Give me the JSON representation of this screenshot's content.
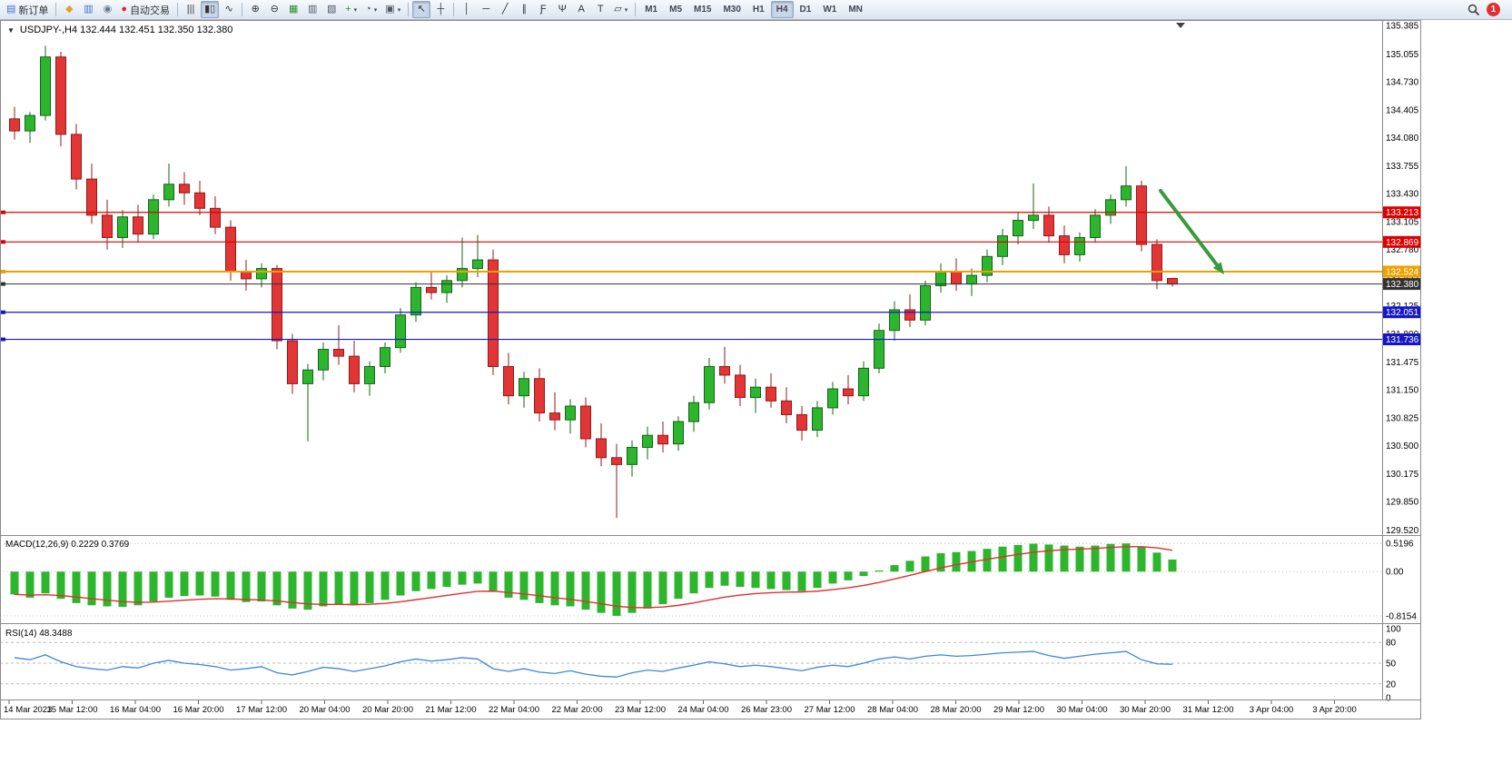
{
  "toolbar": {
    "items": [
      {
        "type": "button",
        "name": "new-order-button",
        "icon": "order-ticket-icon",
        "glyph": "▤",
        "glyph_color": "#3f6fd0",
        "label": "新订单"
      },
      {
        "type": "sep"
      },
      {
        "type": "button",
        "name": "metaeditor-button",
        "icon": "metaeditor-icon",
        "glyph": "◆",
        "glyph_color": "#e0a22e"
      },
      {
        "type": "button",
        "name": "market-watch-button",
        "icon": "market-watch-icon",
        "glyph": "▥",
        "glyph_color": "#3f6fd0"
      },
      {
        "type": "button",
        "name": "mql5-community-button",
        "icon": "mql5-icon",
        "glyph": "◉",
        "glyph_color": "#6a7a8a"
      },
      {
        "type": "button",
        "name": "auto-trading-button",
        "icon": "auto-trading-icon",
        "glyph": "●",
        "glyph_color": "#d92c2c",
        "label": "自动交易"
      },
      {
        "type": "sep"
      },
      {
        "type": "button",
        "name": "bar-chart-button",
        "icon": "bar-chart-icon",
        "glyph": "|||"
      },
      {
        "type": "button",
        "name": "candlestick-chart-button",
        "icon": "candlestick-icon",
        "glyph": "▮▯",
        "active": true
      },
      {
        "type": "button",
        "name": "line-chart-button",
        "icon": "line-chart-icon",
        "glyph": "∿"
      },
      {
        "type": "sep"
      },
      {
        "type": "button",
        "name": "zoom-in-button",
        "icon": "zoom-in-icon",
        "glyph": "⊕"
      },
      {
        "type": "button",
        "name": "zoom-out-button",
        "icon": "zoom-out-icon",
        "glyph": "⊖"
      },
      {
        "type": "button",
        "name": "grid-button",
        "icon": "grid-icon",
        "glyph": "▦",
        "glyph_color": "#2e8b2e"
      },
      {
        "type": "button",
        "name": "tile-windows-button",
        "icon": "tile-windows-icon",
        "glyph": "▥",
        "glyph_color": "#556"
      },
      {
        "type": "button",
        "name": "cascade-windows-button",
        "icon": "cascade-windows-icon",
        "glyph": "▧",
        "glyph_color": "#556"
      },
      {
        "type": "button",
        "name": "indicators-button",
        "icon": "add-indicator-icon",
        "glyph": "+",
        "glyph_color": "#1f9e1f",
        "arrow": true
      },
      {
        "type": "button",
        "name": "periods-button",
        "icon": "clock-icon",
        "glyph": "◔",
        "glyph_color": "#556",
        "arrow": true
      },
      {
        "type": "button",
        "name": "templates-button",
        "icon": "template-icon",
        "glyph": "▣",
        "glyph_color": "#556",
        "arrow": true
      },
      {
        "type": "sep"
      },
      {
        "type": "button",
        "name": "cursor-button",
        "icon": "cursor-icon",
        "glyph": "↖",
        "active": true
      },
      {
        "type": "button",
        "name": "crosshair-button",
        "icon": "crosshair-icon",
        "glyph": "┼"
      },
      {
        "type": "sep"
      },
      {
        "type": "button",
        "name": "vertical-line-button",
        "icon": "vertical-line-icon",
        "glyph": "│"
      },
      {
        "type": "button",
        "name": "horizontal-line-button",
        "icon": "horizontal-line-icon",
        "glyph": "─"
      },
      {
        "type": "button",
        "name": "trendline-button",
        "icon": "trendline-icon",
        "glyph": "╱"
      },
      {
        "type": "button",
        "name": "channel-button",
        "icon": "channel-icon",
        "glyph": "∥"
      },
      {
        "type": "button",
        "name": "fibonacci-button",
        "icon": "fibonacci-icon",
        "glyph": "Ƒ"
      },
      {
        "type": "button",
        "name": "andrews-pitchfork-button",
        "icon": "pitchfork-icon",
        "glyph": "Ψ"
      },
      {
        "type": "button",
        "name": "text-button",
        "icon": "text-icon",
        "glyph": "A"
      },
      {
        "type": "button",
        "name": "label-button",
        "icon": "label-icon",
        "glyph": "T"
      },
      {
        "type": "button",
        "name": "shapes-button",
        "icon": "shapes-icon",
        "glyph": "▱",
        "arrow": true
      },
      {
        "type": "sep"
      },
      {
        "type": "timeframes"
      },
      {
        "type": "spacer"
      },
      {
        "type": "button",
        "name": "search-button",
        "icon": "magnifier-icon",
        "glyph": "magnifier"
      },
      {
        "type": "badge",
        "name": "notification-badge",
        "label": "1"
      }
    ],
    "timeframes": [
      "M1",
      "M5",
      "M15",
      "M30",
      "H1",
      "H4",
      "D1",
      "W1",
      "MN"
    ],
    "active_timeframe": "H4",
    "notification_count": "1"
  },
  "header": {
    "one_click_toggle": "▼",
    "title": "USDJPY-,H4 132.444 132.451 132.350 132.380"
  },
  "colors": {
    "bull": "#2db52d",
    "bull_edge": "#15631a",
    "bear": "#e23535",
    "bear_edge": "#8f1b1b",
    "macd_bar": "#2db52d",
    "macd_signal": "#e03030",
    "rsi_line": "#3f87d9",
    "hline_red": "#dd0000",
    "hline_orange": "#efa000",
    "hline_blue": "#1616c8",
    "bid_line": "#333333",
    "arrow_green": "#379a3c"
  },
  "chart_data": {
    "type": "candlestick",
    "symbol": "USDJPY-",
    "timeframe": "H4",
    "current_ohlc": {
      "open": "132.444",
      "high": "132.451",
      "low": "132.350",
      "close": "132.380"
    },
    "y_axis_labels": [
      "135.385",
      "135.055",
      "134.730",
      "134.405",
      "134.080",
      "133.755",
      "133.430",
      "133.105",
      "132.780",
      "132.455",
      "132.125",
      "131.800",
      "131.475",
      "131.150",
      "130.825",
      "130.500",
      "130.175",
      "129.850",
      "129.520"
    ],
    "y_range": [
      129.46,
      135.45
    ],
    "x_labels": [
      "14 Mar 2023",
      "15 Mar 12:00",
      "16 Mar 04:00",
      "16 Mar 20:00",
      "17 Mar 12:00",
      "20 Mar 04:00",
      "20 Mar 20:00",
      "21 Mar 12:00",
      "22 Mar 04:00",
      "22 Mar 20:00",
      "23 Mar 12:00",
      "24 Mar 04:00",
      "26 Mar 23:00",
      "27 Mar 12:00",
      "28 Mar 04:00",
      "28 Mar 20:00",
      "29 Mar 12:00",
      "30 Mar 04:00",
      "30 Mar 20:00",
      "31 Mar 12:00",
      "3 Apr 04:00",
      "3 Apr 20:00"
    ],
    "candles_ohlc": [
      [
        134.3,
        134.44,
        134.06,
        134.16
      ],
      [
        134.16,
        134.38,
        134.02,
        134.34
      ],
      [
        134.34,
        135.15,
        134.28,
        135.02
      ],
      [
        135.02,
        135.08,
        133.98,
        134.12
      ],
      [
        134.12,
        134.24,
        133.48,
        133.6
      ],
      [
        133.6,
        133.78,
        133.08,
        133.18
      ],
      [
        133.18,
        133.36,
        132.78,
        132.92
      ],
      [
        132.92,
        133.24,
        132.8,
        133.16
      ],
      [
        133.16,
        133.3,
        132.86,
        132.96
      ],
      [
        132.96,
        133.42,
        132.9,
        133.36
      ],
      [
        133.36,
        133.78,
        133.28,
        133.54
      ],
      [
        133.54,
        133.68,
        133.3,
        133.44
      ],
      [
        133.44,
        133.58,
        133.18,
        133.26
      ],
      [
        133.26,
        133.4,
        132.96,
        133.04
      ],
      [
        133.04,
        133.12,
        132.42,
        132.52
      ],
      [
        132.52,
        132.66,
        132.3,
        132.44
      ],
      [
        132.44,
        132.62,
        132.34,
        132.56
      ],
      [
        132.56,
        132.6,
        131.62,
        131.72
      ],
      [
        131.72,
        131.8,
        131.1,
        131.22
      ],
      [
        131.22,
        131.45,
        130.55,
        131.38
      ],
      [
        131.38,
        131.7,
        131.26,
        131.62
      ],
      [
        131.62,
        131.9,
        131.44,
        131.54
      ],
      [
        131.54,
        131.72,
        131.12,
        131.22
      ],
      [
        131.22,
        131.48,
        131.08,
        131.42
      ],
      [
        131.42,
        131.7,
        131.34,
        131.64
      ],
      [
        131.64,
        132.1,
        131.58,
        132.02
      ],
      [
        132.02,
        132.4,
        131.94,
        132.34
      ],
      [
        132.34,
        132.52,
        132.2,
        132.28
      ],
      [
        132.28,
        132.48,
        132.16,
        132.42
      ],
      [
        132.42,
        132.92,
        132.34,
        132.56
      ],
      [
        132.56,
        132.95,
        132.46,
        132.66
      ],
      [
        132.66,
        132.78,
        131.32,
        131.42
      ],
      [
        131.42,
        131.58,
        130.98,
        131.08
      ],
      [
        131.08,
        131.36,
        130.94,
        131.28
      ],
      [
        131.28,
        131.4,
        130.78,
        130.88
      ],
      [
        130.88,
        131.12,
        130.68,
        130.8
      ],
      [
        130.8,
        131.04,
        130.64,
        130.96
      ],
      [
        130.96,
        131.06,
        130.48,
        130.58
      ],
      [
        130.58,
        130.76,
        130.26,
        130.36
      ],
      [
        130.36,
        130.52,
        129.66,
        130.28
      ],
      [
        130.28,
        130.56,
        130.14,
        130.48
      ],
      [
        130.48,
        130.72,
        130.34,
        130.62
      ],
      [
        130.62,
        130.78,
        130.42,
        130.52
      ],
      [
        130.52,
        130.84,
        130.44,
        130.78
      ],
      [
        130.78,
        131.08,
        130.66,
        131.0
      ],
      [
        131.0,
        131.52,
        130.92,
        131.42
      ],
      [
        131.42,
        131.65,
        131.22,
        131.32
      ],
      [
        131.32,
        131.44,
        130.96,
        131.06
      ],
      [
        131.06,
        131.28,
        130.88,
        131.18
      ],
      [
        131.18,
        131.34,
        130.94,
        131.02
      ],
      [
        131.02,
        131.18,
        130.76,
        130.86
      ],
      [
        130.86,
        130.96,
        130.56,
        130.68
      ],
      [
        130.68,
        131.02,
        130.6,
        130.94
      ],
      [
        130.94,
        131.24,
        130.86,
        131.16
      ],
      [
        131.16,
        131.32,
        130.98,
        131.08
      ],
      [
        131.08,
        131.48,
        131.02,
        131.4
      ],
      [
        131.4,
        131.92,
        131.34,
        131.84
      ],
      [
        131.84,
        132.18,
        131.72,
        132.08
      ],
      [
        132.08,
        132.26,
        131.88,
        131.96
      ],
      [
        131.96,
        132.42,
        131.9,
        132.36
      ],
      [
        132.36,
        132.62,
        132.28,
        132.52
      ],
      [
        132.52,
        132.68,
        132.3,
        132.38
      ],
      [
        132.38,
        132.56,
        132.24,
        132.48
      ],
      [
        132.48,
        132.78,
        132.4,
        132.7
      ],
      [
        132.7,
        133.02,
        132.6,
        132.94
      ],
      [
        132.94,
        133.22,
        132.84,
        133.12
      ],
      [
        133.12,
        133.55,
        133.02,
        133.18
      ],
      [
        133.18,
        133.28,
        132.86,
        132.94
      ],
      [
        132.94,
        133.06,
        132.62,
        132.72
      ],
      [
        132.72,
        132.98,
        132.64,
        132.92
      ],
      [
        132.92,
        133.25,
        132.86,
        133.18
      ],
      [
        133.18,
        133.42,
        133.08,
        133.36
      ],
      [
        133.36,
        133.75,
        133.28,
        133.52
      ],
      [
        133.52,
        133.58,
        132.76,
        132.84
      ],
      [
        132.84,
        132.9,
        132.32,
        132.42
      ],
      [
        132.444,
        132.451,
        132.35,
        132.38
      ]
    ],
    "horizontal_lines": [
      {
        "label": "133.213",
        "price": 133.213,
        "color_key": "hline_red",
        "width": 1.2
      },
      {
        "label": "132.869",
        "price": 132.869,
        "color_key": "hline_red",
        "width": 1.2
      },
      {
        "label": "132.524",
        "price": 132.524,
        "color_key": "hline_orange",
        "width": 2
      },
      {
        "label": "132.380",
        "price": 132.38,
        "color_key": "bid_line",
        "width": 1
      },
      {
        "label": "132.051",
        "price": 132.051,
        "color_key": "hline_blue",
        "width": 1.2
      },
      {
        "label": "131.736",
        "price": 131.736,
        "color_key": "hline_blue",
        "width": 1.2
      }
    ],
    "indicators": {
      "macd": {
        "label": "MACD(12,26,9)",
        "current": "0.2229",
        "signal_current": "0.3769",
        "axis_labels": [
          "0.5196",
          "0.00",
          "-0.8154"
        ],
        "axis_values": [
          0.5196,
          0,
          -0.8154
        ],
        "range": [
          -0.95,
          0.64
        ],
        "values": [
          -0.42,
          -0.48,
          -0.4,
          -0.5,
          -0.58,
          -0.62,
          -0.64,
          -0.65,
          -0.62,
          -0.55,
          -0.48,
          -0.45,
          -0.44,
          -0.46,
          -0.52,
          -0.56,
          -0.55,
          -0.62,
          -0.68,
          -0.7,
          -0.64,
          -0.6,
          -0.62,
          -0.58,
          -0.52,
          -0.44,
          -0.36,
          -0.32,
          -0.28,
          -0.24,
          -0.22,
          -0.35,
          -0.48,
          -0.52,
          -0.58,
          -0.62,
          -0.64,
          -0.7,
          -0.76,
          -0.815,
          -0.76,
          -0.68,
          -0.6,
          -0.5,
          -0.4,
          -0.3,
          -0.26,
          -0.28,
          -0.3,
          -0.32,
          -0.34,
          -0.36,
          -0.3,
          -0.22,
          -0.16,
          -0.08,
          0.02,
          0.12,
          0.2,
          0.28,
          0.34,
          0.36,
          0.38,
          0.42,
          0.46,
          0.49,
          0.515,
          0.5,
          0.48,
          0.46,
          0.48,
          0.51,
          0.5196,
          0.46,
          0.35,
          0.2229
        ]
      },
      "rsi": {
        "label": "RSI(14)",
        "current": "48.3488",
        "axis_labels": [
          "100",
          "80",
          "50",
          "20",
          "0"
        ],
        "axis_values": [
          100,
          80,
          50,
          20,
          0
        ],
        "levels": [
          80,
          50,
          20
        ],
        "values": [
          58,
          55,
          62,
          52,
          45,
          42,
          40,
          45,
          43,
          50,
          54,
          50,
          48,
          45,
          40,
          42,
          45,
          36,
          33,
          38,
          44,
          42,
          38,
          42,
          46,
          52,
          56,
          53,
          55,
          58,
          56,
          42,
          38,
          42,
          37,
          35,
          39,
          34,
          31,
          30,
          36,
          40,
          38,
          43,
          47,
          52,
          49,
          45,
          47,
          45,
          42,
          39,
          44,
          47,
          45,
          50,
          56,
          59,
          56,
          60,
          62,
          60,
          61,
          63,
          65,
          66,
          67,
          61,
          57,
          60,
          63,
          65,
          67,
          55,
          49,
          48.35
        ]
      }
    },
    "annotations": [
      {
        "type": "arrow",
        "start": [
          1278,
          188
        ],
        "end": [
          1348,
          280
        ],
        "color_key": "arrow_green"
      }
    ]
  }
}
